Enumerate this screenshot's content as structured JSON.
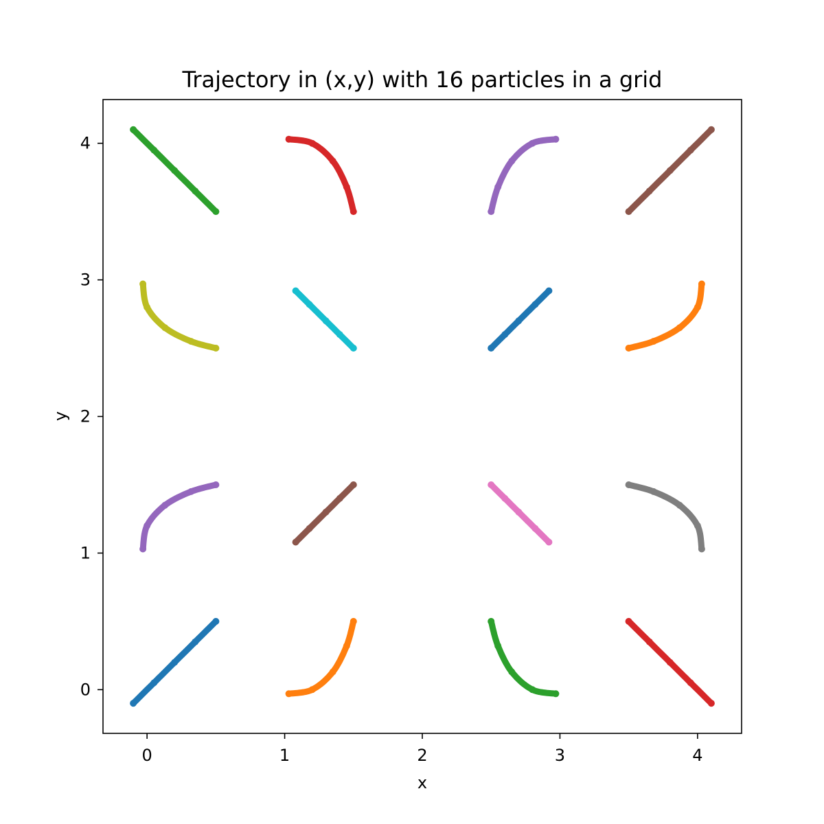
{
  "chart_data": {
    "type": "scatter",
    "title": "Trajectory in (x,y) with 16 particles in a grid",
    "xlabel": "x",
    "ylabel": "y",
    "xlim": [
      -0.32,
      4.32
    ],
    "ylim": [
      -0.32,
      4.32
    ],
    "xticks": [
      "0",
      "1",
      "2",
      "3",
      "4"
    ],
    "yticks": [
      "0",
      "1",
      "2",
      "3",
      "4"
    ],
    "grid": false,
    "legend": false,
    "series": [
      {
        "color": "#1f77b4",
        "x": [
          0.5,
          0.35,
          0.2,
          0.05,
          -0.1
        ],
        "y": [
          0.5,
          0.35,
          0.2,
          0.05,
          -0.1
        ]
      },
      {
        "color": "#ff7f0e",
        "x": [
          1.5,
          1.45,
          1.35,
          1.2,
          1.03
        ],
        "y": [
          0.5,
          0.32,
          0.13,
          0.0,
          -0.03
        ]
      },
      {
        "color": "#2ca02c",
        "x": [
          2.5,
          2.55,
          2.65,
          2.8,
          2.97
        ],
        "y": [
          0.5,
          0.32,
          0.13,
          0.0,
          -0.03
        ]
      },
      {
        "color": "#d62728",
        "x": [
          3.5,
          3.65,
          3.8,
          3.95,
          4.1
        ],
        "y": [
          0.5,
          0.35,
          0.2,
          0.05,
          -0.1
        ]
      },
      {
        "color": "#9467bd",
        "x": [
          -0.03,
          0.0,
          0.13,
          0.32,
          0.5
        ],
        "y": [
          1.03,
          1.2,
          1.35,
          1.45,
          1.5
        ]
      },
      {
        "color": "#8c564b",
        "x": [
          1.5,
          1.4,
          1.3,
          1.18,
          1.08
        ],
        "y": [
          1.5,
          1.4,
          1.3,
          1.18,
          1.08
        ]
      },
      {
        "color": "#e377c2",
        "x": [
          2.5,
          2.6,
          2.7,
          2.82,
          2.92
        ],
        "y": [
          1.5,
          1.4,
          1.3,
          1.18,
          1.08
        ]
      },
      {
        "color": "#7f7f7f",
        "x": [
          3.5,
          3.68,
          3.87,
          4.0,
          4.03
        ],
        "y": [
          1.5,
          1.45,
          1.35,
          1.2,
          1.03
        ]
      },
      {
        "color": "#bcbd22",
        "x": [
          -0.03,
          0.0,
          0.13,
          0.32,
          0.5
        ],
        "y": [
          2.97,
          2.8,
          2.65,
          2.55,
          2.5
        ]
      },
      {
        "color": "#17becf",
        "x": [
          1.08,
          1.18,
          1.3,
          1.4,
          1.5
        ],
        "y": [
          2.92,
          2.82,
          2.7,
          2.6,
          2.5
        ]
      },
      {
        "color": "#1f77b4",
        "x": [
          2.5,
          2.6,
          2.7,
          2.82,
          2.92
        ],
        "y": [
          2.5,
          2.6,
          2.7,
          2.82,
          2.92
        ]
      },
      {
        "color": "#ff7f0e",
        "x": [
          3.5,
          3.68,
          3.87,
          4.0,
          4.03
        ],
        "y": [
          2.5,
          2.55,
          2.65,
          2.8,
          2.97
        ]
      },
      {
        "color": "#2ca02c",
        "x": [
          -0.1,
          0.05,
          0.2,
          0.35,
          0.5
        ],
        "y": [
          4.1,
          3.95,
          3.8,
          3.65,
          3.5
        ]
      },
      {
        "color": "#d62728",
        "x": [
          1.03,
          1.2,
          1.35,
          1.45,
          1.5
        ],
        "y": [
          4.03,
          4.0,
          3.87,
          3.68,
          3.5
        ]
      },
      {
        "color": "#9467bd",
        "x": [
          2.5,
          2.55,
          2.65,
          2.8,
          2.97
        ],
        "y": [
          3.5,
          3.68,
          3.87,
          4.0,
          4.03
        ]
      },
      {
        "color": "#8c564b",
        "x": [
          3.5,
          3.65,
          3.8,
          3.95,
          4.1
        ],
        "y": [
          3.5,
          3.65,
          3.8,
          3.95,
          4.1
        ]
      }
    ]
  }
}
